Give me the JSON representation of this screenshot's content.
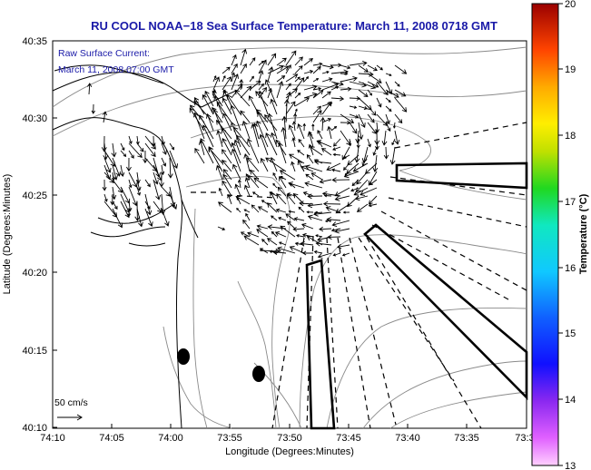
{
  "title": "RU COOL  NOAA−18  Sea Surface Temperature:  March 11, 2008 0718 GMT",
  "legend": {
    "line1": "Raw Surface Current:",
    "line2": "March 11, 2008 07:00 GMT"
  },
  "x_axis": {
    "label": "Longitude (Degrees:Minutes)",
    "ticks": [
      "74:10",
      "74:05",
      "74:00",
      "73:55",
      "73:50",
      "73:45",
      "73:40",
      "73:35",
      "73:3"
    ]
  },
  "y_axis": {
    "label": "Latitude (Degrees:Minutes)",
    "ticks": [
      "40:35",
      "40:30",
      "40:25",
      "40:20",
      "40:15",
      "40:10"
    ]
  },
  "scale_label": "50 cm/s",
  "colorbar": {
    "label": "Temperature (°C)",
    "ticks": [
      "20",
      "19",
      "18",
      "17",
      "16",
      "15",
      "14",
      "13"
    ],
    "range": [
      13,
      20
    ]
  },
  "colors": {
    "title": "#1a1aa8",
    "contour": "#8a8a8a",
    "vector": "#000000"
  }
}
